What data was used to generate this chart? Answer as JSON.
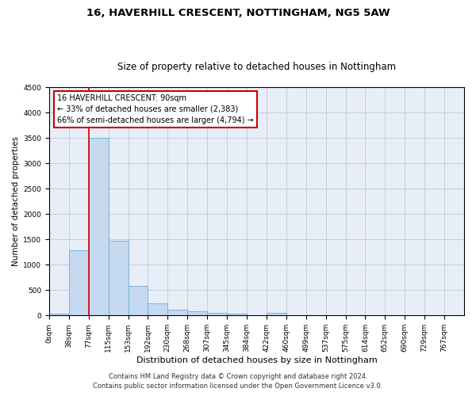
{
  "title1": "16, HAVERHILL CRESCENT, NOTTINGHAM, NG5 5AW",
  "title2": "Size of property relative to detached houses in Nottingham",
  "xlabel": "Distribution of detached houses by size in Nottingham",
  "ylabel": "Number of detached properties",
  "bin_labels": [
    "0sqm",
    "38sqm",
    "77sqm",
    "115sqm",
    "153sqm",
    "192sqm",
    "230sqm",
    "268sqm",
    "307sqm",
    "345sqm",
    "384sqm",
    "422sqm",
    "460sqm",
    "499sqm",
    "537sqm",
    "575sqm",
    "614sqm",
    "652sqm",
    "690sqm",
    "729sqm",
    "767sqm"
  ],
  "bar_heights": [
    40,
    1280,
    3510,
    1480,
    580,
    240,
    115,
    80,
    50,
    30,
    0,
    50,
    0,
    0,
    0,
    0,
    0,
    0,
    0,
    0,
    0
  ],
  "bar_color": "#c5d9f0",
  "bar_edge_color": "#6baed6",
  "annotation_text": "16 HAVERHILL CRESCENT: 90sqm\n← 33% of detached houses are smaller (2,383)\n66% of semi-detached houses are larger (4,794) →",
  "annotation_box_color": "white",
  "annotation_box_edgecolor": "#cc0000",
  "vline_color": "#cc0000",
  "ylim": [
    0,
    4500
  ],
  "yticks": [
    0,
    500,
    1000,
    1500,
    2000,
    2500,
    3000,
    3500,
    4000,
    4500
  ],
  "footer1": "Contains HM Land Registry data © Crown copyright and database right 2024.",
  "footer2": "Contains public sector information licensed under the Open Government Licence v3.0.",
  "plot_bg_color": "#e8eef8",
  "grid_color": "#c0c8d8",
  "title1_fontsize": 9.5,
  "title2_fontsize": 8.5,
  "xlabel_fontsize": 8,
  "ylabel_fontsize": 7.5,
  "tick_fontsize": 6.5,
  "annot_fontsize": 7,
  "footer_fontsize": 6
}
